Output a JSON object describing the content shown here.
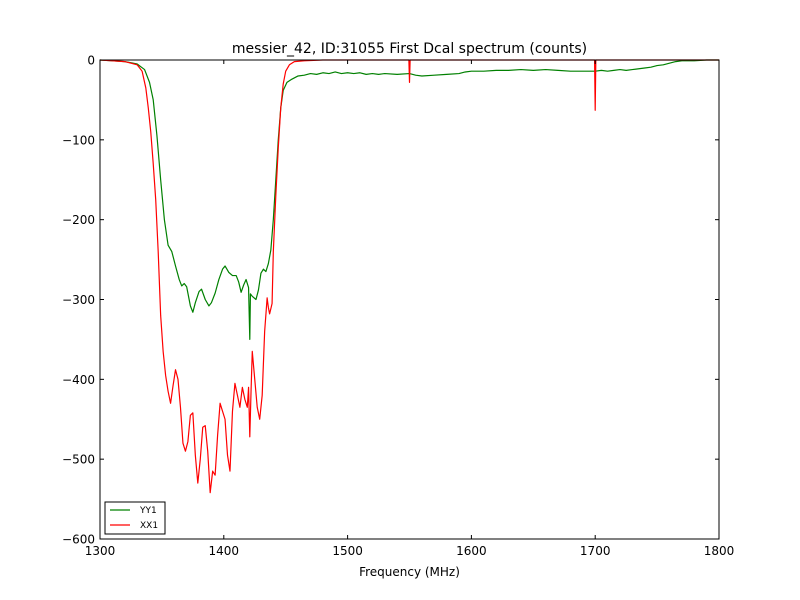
{
  "chart_data": {
    "type": "line",
    "title": "messier_42, ID:31055 First Dcal spectrum (counts)",
    "xlabel": "Frequency (MHz)",
    "ylabel": "",
    "xlim": [
      1300,
      1800
    ],
    "ylim": [
      -600,
      0
    ],
    "xticks": [
      "1300",
      "1400",
      "1500",
      "1600",
      "1700",
      "1800"
    ],
    "yticks": [
      "0",
      "−100",
      "−200",
      "−300",
      "−400",
      "−500",
      "−600"
    ],
    "grid": false,
    "legend_position": "lower-left",
    "series": [
      {
        "name": "YY1",
        "color": "#008000",
        "points": [
          [
            1300,
            0
          ],
          [
            1310,
            -1
          ],
          [
            1320,
            -2
          ],
          [
            1330,
            -5
          ],
          [
            1336,
            -12
          ],
          [
            1340,
            -28
          ],
          [
            1343,
            -50
          ],
          [
            1346,
            -95
          ],
          [
            1349,
            -150
          ],
          [
            1352,
            -200
          ],
          [
            1355,
            -232
          ],
          [
            1358,
            -240
          ],
          [
            1361,
            -258
          ],
          [
            1364,
            -275
          ],
          [
            1366,
            -283
          ],
          [
            1368,
            -280
          ],
          [
            1370,
            -284
          ],
          [
            1373,
            -308
          ],
          [
            1375,
            -316
          ],
          [
            1377,
            -304
          ],
          [
            1380,
            -290
          ],
          [
            1382,
            -287
          ],
          [
            1385,
            -300
          ],
          [
            1388,
            -308
          ],
          [
            1390,
            -304
          ],
          [
            1393,
            -292
          ],
          [
            1396,
            -275
          ],
          [
            1399,
            -262
          ],
          [
            1401,
            -258
          ],
          [
            1404,
            -266
          ],
          [
            1407,
            -270
          ],
          [
            1410,
            -270
          ],
          [
            1412,
            -278
          ],
          [
            1414,
            -291
          ],
          [
            1416,
            -282
          ],
          [
            1418,
            -275
          ],
          [
            1420,
            -285
          ],
          [
            1421,
            -350
          ],
          [
            1421.5,
            -293
          ],
          [
            1423,
            -296
          ],
          [
            1426,
            -300
          ],
          [
            1428,
            -288
          ],
          [
            1430,
            -267
          ],
          [
            1432,
            -262
          ],
          [
            1434,
            -265
          ],
          [
            1436,
            -255
          ],
          [
            1438,
            -238
          ],
          [
            1440,
            -200
          ],
          [
            1442,
            -150
          ],
          [
            1444,
            -100
          ],
          [
            1446,
            -60
          ],
          [
            1448,
            -38
          ],
          [
            1451,
            -28
          ],
          [
            1455,
            -24
          ],
          [
            1460,
            -20
          ],
          [
            1465,
            -19
          ],
          [
            1470,
            -17
          ],
          [
            1475,
            -18
          ],
          [
            1480,
            -16
          ],
          [
            1485,
            -17
          ],
          [
            1490,
            -15
          ],
          [
            1495,
            -17
          ],
          [
            1500,
            -16
          ],
          [
            1505,
            -17
          ],
          [
            1510,
            -16
          ],
          [
            1515,
            -18
          ],
          [
            1520,
            -17
          ],
          [
            1525,
            -18
          ],
          [
            1530,
            -17
          ],
          [
            1540,
            -18
          ],
          [
            1550,
            -17
          ],
          [
            1555,
            -19
          ],
          [
            1560,
            -20
          ],
          [
            1570,
            -19
          ],
          [
            1580,
            -18
          ],
          [
            1590,
            -17
          ],
          [
            1595,
            -15
          ],
          [
            1600,
            -14
          ],
          [
            1610,
            -14
          ],
          [
            1620,
            -13
          ],
          [
            1630,
            -13
          ],
          [
            1640,
            -12
          ],
          [
            1650,
            -13
          ],
          [
            1660,
            -12
          ],
          [
            1670,
            -13
          ],
          [
            1680,
            -14
          ],
          [
            1690,
            -14
          ],
          [
            1700,
            -14
          ],
          [
            1705,
            -13
          ],
          [
            1710,
            -14
          ],
          [
            1715,
            -13
          ],
          [
            1720,
            -12
          ],
          [
            1725,
            -13
          ],
          [
            1730,
            -12
          ],
          [
            1740,
            -10
          ],
          [
            1745,
            -9
          ],
          [
            1750,
            -7
          ],
          [
            1755,
            -6
          ],
          [
            1760,
            -4
          ],
          [
            1765,
            -2
          ],
          [
            1770,
            -1
          ],
          [
            1780,
            -1
          ],
          [
            1790,
            0
          ],
          [
            1800,
            0
          ]
        ]
      },
      {
        "name": "XX1",
        "color": "#ff0000",
        "points": [
          [
            1300,
            0
          ],
          [
            1310,
            -1
          ],
          [
            1320,
            -2
          ],
          [
            1330,
            -6
          ],
          [
            1334,
            -14
          ],
          [
            1337,
            -35
          ],
          [
            1339,
            -60
          ],
          [
            1341,
            -90
          ],
          [
            1343,
            -130
          ],
          [
            1345,
            -175
          ],
          [
            1347,
            -240
          ],
          [
            1349,
            -320
          ],
          [
            1351,
            -365
          ],
          [
            1353,
            -395
          ],
          [
            1355,
            -415
          ],
          [
            1357,
            -430
          ],
          [
            1359,
            -408
          ],
          [
            1361,
            -388
          ],
          [
            1363,
            -400
          ],
          [
            1365,
            -435
          ],
          [
            1367,
            -480
          ],
          [
            1369,
            -490
          ],
          [
            1371,
            -478
          ],
          [
            1373,
            -445
          ],
          [
            1375,
            -442
          ],
          [
            1377,
            -495
          ],
          [
            1379,
            -530
          ],
          [
            1381,
            -500
          ],
          [
            1383,
            -460
          ],
          [
            1385,
            -458
          ],
          [
            1387,
            -490
          ],
          [
            1389,
            -542
          ],
          [
            1391,
            -515
          ],
          [
            1393,
            -520
          ],
          [
            1395,
            -470
          ],
          [
            1397,
            -430
          ],
          [
            1399,
            -440
          ],
          [
            1401,
            -450
          ],
          [
            1403,
            -495
          ],
          [
            1405,
            -515
          ],
          [
            1407,
            -440
          ],
          [
            1409,
            -405
          ],
          [
            1411,
            -420
          ],
          [
            1413,
            -435
          ],
          [
            1415,
            -410
          ],
          [
            1417,
            -425
          ],
          [
            1419,
            -435
          ],
          [
            1420,
            -410
          ],
          [
            1421,
            -472
          ],
          [
            1422,
            -415
          ],
          [
            1423,
            -365
          ],
          [
            1425,
            -400
          ],
          [
            1427,
            -435
          ],
          [
            1429,
            -450
          ],
          [
            1431,
            -420
          ],
          [
            1433,
            -340
          ],
          [
            1435,
            -298
          ],
          [
            1436,
            -310
          ],
          [
            1437,
            -318
          ],
          [
            1439,
            -305
          ],
          [
            1440,
            -240
          ],
          [
            1442,
            -170
          ],
          [
            1444,
            -110
          ],
          [
            1446,
            -60
          ],
          [
            1448,
            -30
          ],
          [
            1450,
            -14
          ],
          [
            1453,
            -6
          ],
          [
            1457,
            -2
          ],
          [
            1465,
            -1
          ],
          [
            1480,
            0
          ],
          [
            1500,
            0
          ],
          [
            1520,
            0
          ],
          [
            1549.5,
            0
          ],
          [
            1550,
            -28
          ],
          [
            1550.5,
            0
          ],
          [
            1600,
            0
          ],
          [
            1650,
            0
          ],
          [
            1699.5,
            0
          ],
          [
            1700,
            -63
          ],
          [
            1700.5,
            0
          ],
          [
            1750,
            0
          ],
          [
            1800,
            0
          ]
        ]
      }
    ]
  }
}
